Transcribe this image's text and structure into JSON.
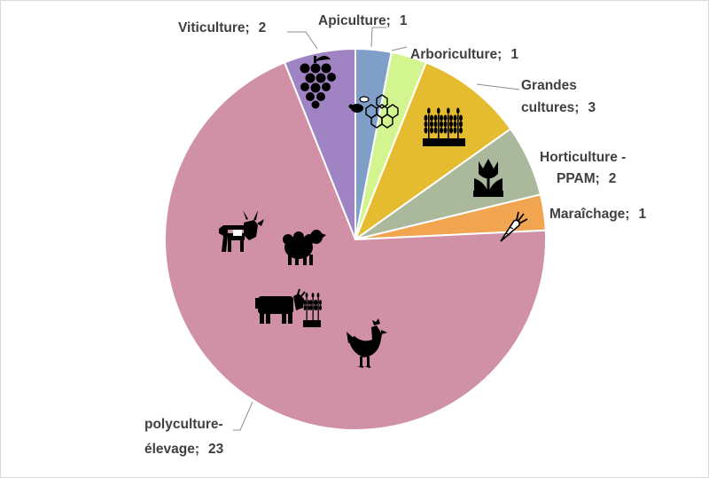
{
  "chart_data": {
    "type": "pie",
    "title": "",
    "categories": [
      "Apiculture",
      "Arboriculture",
      "Grandes cultures",
      "Horticulture - PPAM",
      "Maraîchage",
      "polyculture-élevage",
      "Viticulture"
    ],
    "values": [
      1,
      1,
      3,
      2,
      1,
      23,
      2
    ],
    "colors": [
      "#7f9fc9",
      "#d2f58f",
      "#e5bb2f",
      "#aab89c",
      "#f2a550",
      "#d090a5",
      "#a083c3"
    ],
    "start_angle_deg": 0,
    "direction": "clockwise",
    "data_labels": [
      {
        "lines": [
          "Apiculture;",
          "1"
        ]
      },
      {
        "lines": [
          "Arboriculture;",
          "1"
        ]
      },
      {
        "lines": [
          "Grandes",
          "cultures;",
          "3"
        ]
      },
      {
        "lines": [
          "Horticulture -",
          "PPAM;",
          "2"
        ]
      },
      {
        "lines": [
          "Maraîchage;",
          "1"
        ]
      },
      {
        "lines": [
          "polyculture-",
          "élevage;",
          "23"
        ]
      },
      {
        "lines": [
          "Viticulture;",
          "2"
        ]
      }
    ],
    "icons": [
      "bee-honeycomb-icon",
      "wheat-icon",
      "tulip-icon",
      "carrot-icon",
      "goat-icon",
      "sheep-icon",
      "cow-icon",
      "hen-icon",
      "grape-icon"
    ],
    "legend": "none"
  }
}
